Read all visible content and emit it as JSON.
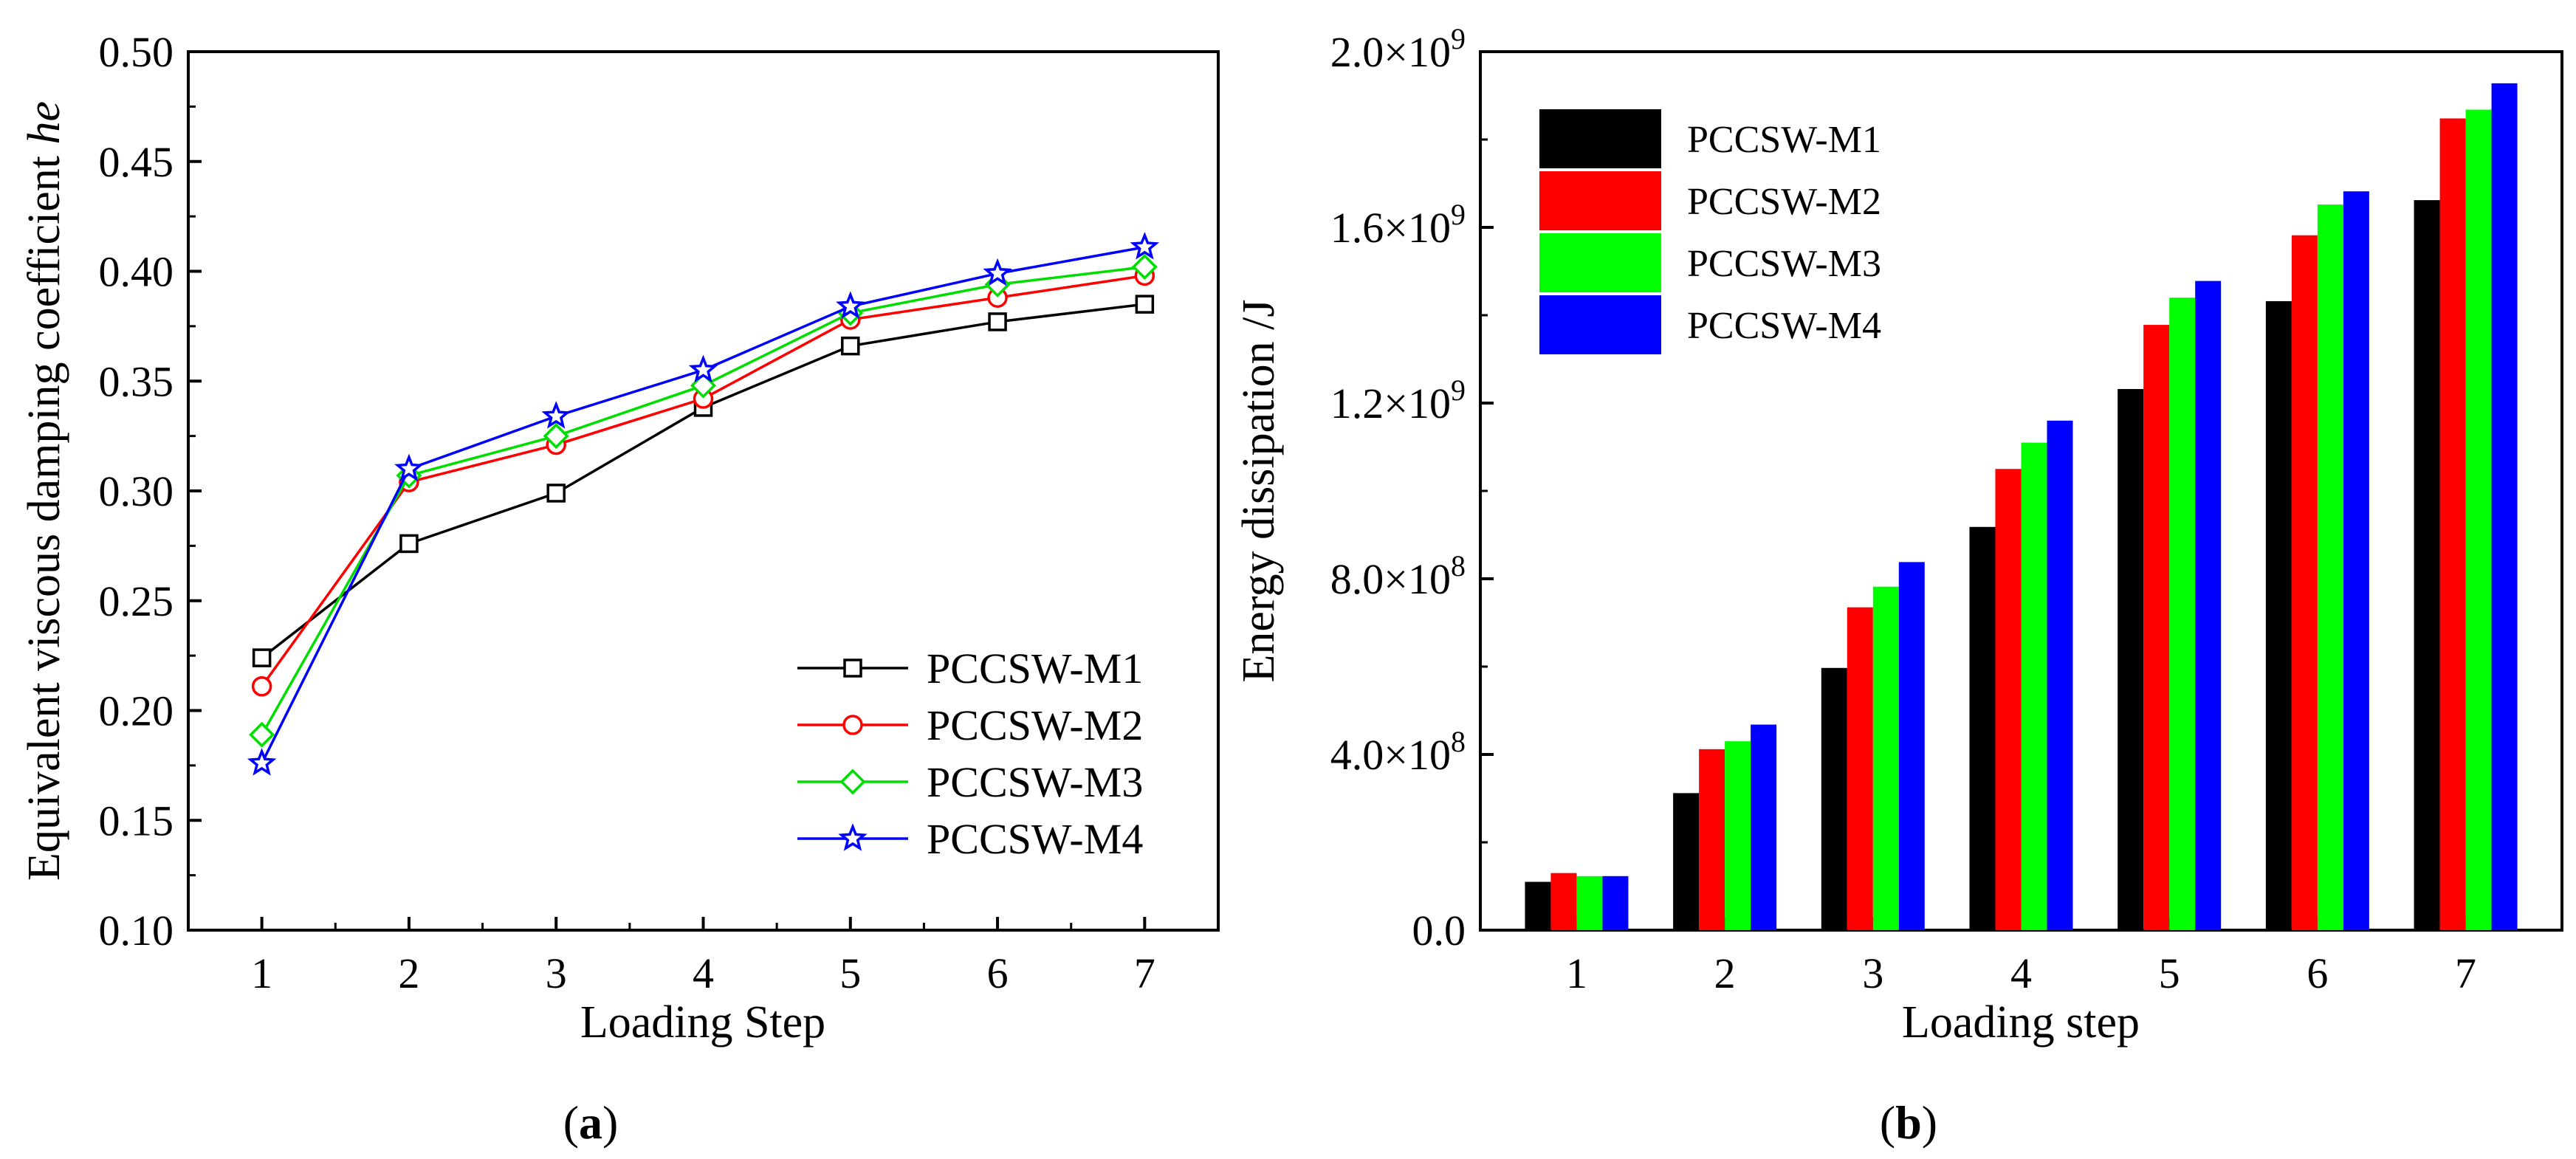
{
  "chart_data": [
    {
      "id": "a",
      "type": "line",
      "caption": {
        "open": "(",
        "letter": "a",
        "close": ")"
      },
      "xlabel": "Loading Step",
      "ylabel": {
        "prefix": "Equivalent viscous damping coefficient ",
        "italic": "he"
      },
      "x": [
        1,
        2,
        3,
        4,
        5,
        6,
        7
      ],
      "xticks": [
        "1",
        "2",
        "3",
        "4",
        "5",
        "6",
        "7"
      ],
      "ylim": [
        0.1,
        0.5
      ],
      "yticks": [
        "0.10",
        "0.15",
        "0.20",
        "0.25",
        "0.30",
        "0.35",
        "0.40",
        "0.45",
        "0.50"
      ],
      "legend_position": "bottom-right",
      "series": [
        {
          "name": "PCCSW-M1",
          "color": "#000000",
          "marker": "square",
          "values": [
            0.224,
            0.276,
            0.299,
            0.338,
            0.366,
            0.377,
            0.385
          ]
        },
        {
          "name": "PCCSW-M2",
          "color": "#ff0000",
          "marker": "circle",
          "values": [
            0.211,
            0.304,
            0.321,
            0.342,
            0.378,
            0.388,
            0.398
          ]
        },
        {
          "name": "PCCSW-M3",
          "color": "#00dd00",
          "marker": "diamond",
          "values": [
            0.189,
            0.307,
            0.325,
            0.348,
            0.381,
            0.394,
            0.402
          ]
        },
        {
          "name": "PCCSW-M4",
          "color": "#0000ff",
          "marker": "star",
          "values": [
            0.176,
            0.31,
            0.334,
            0.355,
            0.384,
            0.399,
            0.411
          ]
        }
      ]
    },
    {
      "id": "b",
      "type": "bar",
      "caption": {
        "open": "(",
        "letter": "b",
        "close": ")"
      },
      "xlabel": "Loading step",
      "ylabel": "Energy dissipation /J",
      "categories": [
        "1",
        "2",
        "3",
        "4",
        "5",
        "6",
        "7"
      ],
      "ylim": [
        0,
        2000000000
      ],
      "yticks": [
        {
          "value": 0,
          "label": "0.0"
        },
        {
          "value": 400000000,
          "mantissa": "4.0",
          "exp": "8"
        },
        {
          "value": 800000000,
          "mantissa": "8.0",
          "exp": "8"
        },
        {
          "value": 1200000000,
          "mantissa": "1.2",
          "exp": "9"
        },
        {
          "value": 1600000000,
          "mantissa": "1.6",
          "exp": "9"
        },
        {
          "value": 2000000000,
          "mantissa": "2.0",
          "exp": "9"
        }
      ],
      "legend_position": "top-left",
      "series": [
        {
          "name": "PCCSW-M1",
          "color": "#000000",
          "values": [
            110000000,
            312000000,
            597000000,
            918000000,
            1232000000,
            1432000000,
            1662000000
          ]
        },
        {
          "name": "PCCSW-M2",
          "color": "#ff0000",
          "values": [
            130000000,
            412000000,
            735000000,
            1050000000,
            1378000000,
            1582000000,
            1848000000
          ]
        },
        {
          "name": "PCCSW-M3",
          "color": "#00ff00",
          "values": [
            123000000,
            430000000,
            782000000,
            1110000000,
            1440000000,
            1652000000,
            1868000000
          ]
        },
        {
          "name": "PCCSW-M4",
          "color": "#0000ff",
          "values": [
            123000000,
            468000000,
            838000000,
            1160000000,
            1478000000,
            1682000000,
            1928000000
          ]
        }
      ]
    }
  ]
}
